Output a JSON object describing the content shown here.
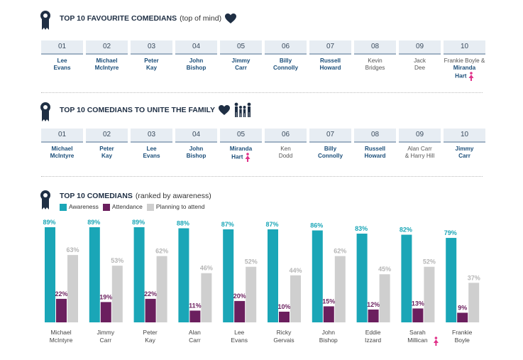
{
  "sections": {
    "favourite": {
      "title": "TOP 10 FAVOURITE COMEDIANS",
      "subtitle": "(top of mind)",
      "ranks": [
        {
          "rank": "01",
          "name": [
            "Lee",
            "Evans"
          ],
          "bold": true
        },
        {
          "rank": "02",
          "name": [
            "Michael",
            "McIntyre"
          ],
          "bold": true
        },
        {
          "rank": "03",
          "name": [
            "Peter",
            "Kay"
          ],
          "bold": true
        },
        {
          "rank": "04",
          "name": [
            "John",
            "Bishop"
          ],
          "bold": true
        },
        {
          "rank": "05",
          "name": [
            "Jimmy",
            "Carr"
          ],
          "bold": true
        },
        {
          "rank": "06",
          "name": [
            "Billy",
            "Connolly"
          ],
          "bold": true
        },
        {
          "rank": "07",
          "name": [
            "Russell",
            "Howard"
          ],
          "bold": true
        },
        {
          "rank": "08",
          "name": [
            "Kevin",
            "Bridges"
          ],
          "bold": false
        },
        {
          "rank": "09",
          "name": [
            "Jack",
            "Dee"
          ],
          "bold": false
        },
        {
          "rank": "10",
          "name": [
            "Frankie Boyle &",
            "Miranda",
            "Hart"
          ],
          "bold": false,
          "female": true
        }
      ]
    },
    "family": {
      "title": "TOP 10 COMEDIANS TO UNITE THE FAMILY",
      "ranks": [
        {
          "rank": "01",
          "name": [
            "Michael",
            "McIntyre"
          ],
          "bold": true
        },
        {
          "rank": "02",
          "name": [
            "Peter",
            "Kay"
          ],
          "bold": true
        },
        {
          "rank": "03",
          "name": [
            "Lee",
            "Evans"
          ],
          "bold": true
        },
        {
          "rank": "04",
          "name": [
            "John",
            "Bishop"
          ],
          "bold": true
        },
        {
          "rank": "05",
          "name": [
            "Miranda",
            "Hart"
          ],
          "bold": true,
          "female": true
        },
        {
          "rank": "06",
          "name": [
            "Ken",
            "Dodd"
          ],
          "bold": false
        },
        {
          "rank": "07",
          "name": [
            "Billy",
            "Connolly"
          ],
          "bold": true
        },
        {
          "rank": "08",
          "name": [
            "Russell",
            "Howard"
          ],
          "bold": true
        },
        {
          "rank": "09",
          "name": [
            "Alan Carr",
            "& Harry Hill"
          ],
          "bold": false
        },
        {
          "rank": "10",
          "name": [
            "Jimmy",
            "Carr"
          ],
          "bold": true
        }
      ]
    },
    "awareness": {
      "title": "TOP 10 COMEDIANS",
      "subtitle": "(ranked by awareness)"
    }
  },
  "colors": {
    "awareness": "#1aa6b7",
    "attendance": "#6b1f5e",
    "planning": "#cfcfcf",
    "female_icon": "#e0338a",
    "title": "#1f2f44"
  },
  "chart_data": {
    "type": "bar",
    "title": "TOP 10 COMEDIANS",
    "subtitle": "(ranked by awareness)",
    "categories": [
      "Michael McIntyre",
      "Jimmy Carr",
      "Peter Kay",
      "Alan Carr",
      "Lee Evans",
      "Ricky Gervais",
      "John Bishop",
      "Eddie Izzard",
      "Sarah Millican",
      "Frankie Boyle"
    ],
    "category_lines": [
      [
        "Michael",
        "McIntyre"
      ],
      [
        "Jimmy",
        "Carr"
      ],
      [
        "Peter",
        "Kay"
      ],
      [
        "Alan",
        "Carr"
      ],
      [
        "Lee",
        "Evans"
      ],
      [
        "Ricky",
        "Gervais"
      ],
      [
        "John",
        "Bishop"
      ],
      [
        "Eddie",
        "Izzard"
      ],
      [
        "Sarah",
        "Millican"
      ],
      [
        "Frankie",
        "Boyle"
      ]
    ],
    "female_flags": [
      false,
      false,
      false,
      false,
      false,
      false,
      false,
      false,
      true,
      false
    ],
    "series": [
      {
        "name": "Awareness",
        "values": [
          89,
          89,
          89,
          88,
          87,
          87,
          86,
          83,
          82,
          79
        ],
        "labels": [
          "89%",
          "89%",
          "89%",
          "88%",
          "87%",
          "87%",
          "86%",
          "83%",
          "82%",
          "79%"
        ]
      },
      {
        "name": "Attendance",
        "values": [
          22,
          19,
          22,
          11,
          20,
          10,
          15,
          12,
          13,
          9
        ],
        "labels": [
          "22%",
          "19%",
          "22%",
          "11%",
          "20%",
          "10%",
          "15%",
          "12%",
          "13%",
          "9%"
        ]
      },
      {
        "name": "Planning to attend",
        "values": [
          63,
          53,
          62,
          46,
          52,
          44,
          62,
          45,
          52,
          37
        ],
        "labels": [
          "63%",
          "53%",
          "62%",
          "46%",
          "52%",
          "44%",
          "62%",
          "45%",
          "52%",
          "37%"
        ]
      }
    ],
    "ylim": [
      0,
      100
    ],
    "grid": false,
    "legend": "top-left"
  }
}
